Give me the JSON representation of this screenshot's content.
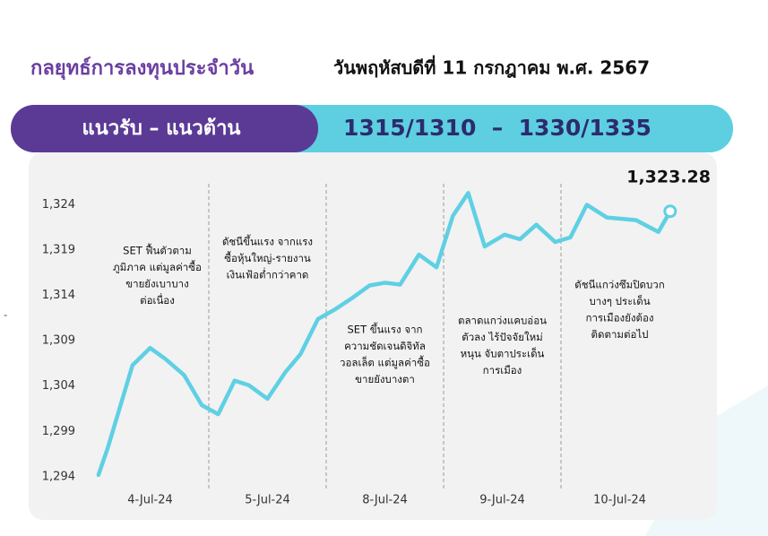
{
  "header": {
    "title": "กลยุทธ์การลงทุนประจำวัน",
    "date": "วันพฤหัสบดีที่ 11 กรกฎาคม พ.ศ. 2567"
  },
  "banner": {
    "label": "แนวรับ – แนวต้าน",
    "levels": "1315/1310  –  1330/1335"
  },
  "chart_data": {
    "type": "line",
    "x": [
      0.06,
      0.14,
      0.35,
      0.5,
      0.63,
      0.79,
      0.94,
      1.08,
      1.22,
      1.34,
      1.5,
      1.65,
      1.78,
      1.93,
      2.08,
      2.22,
      2.37,
      2.5,
      2.63,
      2.79,
      2.94,
      3.08,
      3.21,
      3.35,
      3.52,
      3.65,
      3.79,
      3.95,
      4.08,
      4.22,
      4.39,
      4.64,
      4.83,
      4.93
    ],
    "series": [
      {
        "color": "#5fd0e3",
        "values": [
          1294.2,
          1297.2,
          1306.3,
          1308.2,
          1307.0,
          1305.2,
          1301.9,
          1300.9,
          1304.6,
          1304.1,
          1302.6,
          1305.5,
          1307.5,
          1311.4,
          1312.5,
          1313.7,
          1315.1,
          1315.4,
          1315.2,
          1318.5,
          1317.1,
          1322.8,
          1325.3,
          1319.4,
          1320.7,
          1320.2,
          1321.8,
          1319.9,
          1320.4,
          1324.0,
          1322.6,
          1322.3,
          1321.0,
          1323.28
        ],
        "value_labels": [
          null,
          null,
          null,
          null,
          null,
          null,
          null,
          null,
          null,
          null,
          null,
          null,
          null,
          null,
          null,
          null,
          null,
          null,
          null,
          null,
          null,
          null,
          null,
          null,
          null,
          null,
          null,
          null,
          null,
          null,
          null,
          null,
          null,
          "1,323.28"
        ]
      }
    ],
    "xlim": [
      0,
      5
    ],
    "xticks": [
      {
        "value": 0.5,
        "label": "4-Jul-24"
      },
      {
        "value": 1.5,
        "label": "5-Jul-24"
      },
      {
        "value": 2.5,
        "label": "8-Jul-24"
      },
      {
        "value": 3.5,
        "label": "9-Jul-24"
      },
      {
        "value": 4.5,
        "label": "10-Jul-24"
      }
    ],
    "ylim": [
      1293,
      1328
    ],
    "yticks": [
      {
        "value": 1294,
        "label": "1,294"
      },
      {
        "value": 1299,
        "label": "1,299"
      },
      {
        "value": 1304,
        "label": "1,304"
      },
      {
        "value": 1309,
        "label": "1,309"
      },
      {
        "value": 1314,
        "label": "1,314"
      },
      {
        "value": 1319,
        "label": "1,319"
      },
      {
        "value": 1324,
        "label": "1,324"
      }
    ],
    "annotations": [
      [
        "SET ฟื้นตัวตาม",
        "ภูมิภาค แต่มูลค่าซื้อ",
        "ขายยังเบาบาง",
        "ต่อเนื่อง"
      ],
      [
        "ดัชนีขึ้นแรง จากแรง",
        "ซื้อหุ้นใหญ่-รายงาน",
        "เงินเฟ้อต่ำกว่าคาด"
      ],
      [
        "SET ขึ้นแรง จาก",
        "ความชัดเจนดิจิทัล",
        "วอลเล็ต แต่มูลค่าซื้อ",
        "ขายยังบางตา"
      ],
      [
        "ตลาดแกว่งแคบอ่อน",
        "ตัวลง ไร้ปัจจัยใหม่",
        "หนุน จับตาประเด็น",
        "การเมือง"
      ],
      [
        "ดัชนีแกว่งซึมปิดบวก",
        "บางๆ ประเด็น",
        "การเมืองยังต้อง",
        "ติดตามต่อไป"
      ]
    ]
  }
}
